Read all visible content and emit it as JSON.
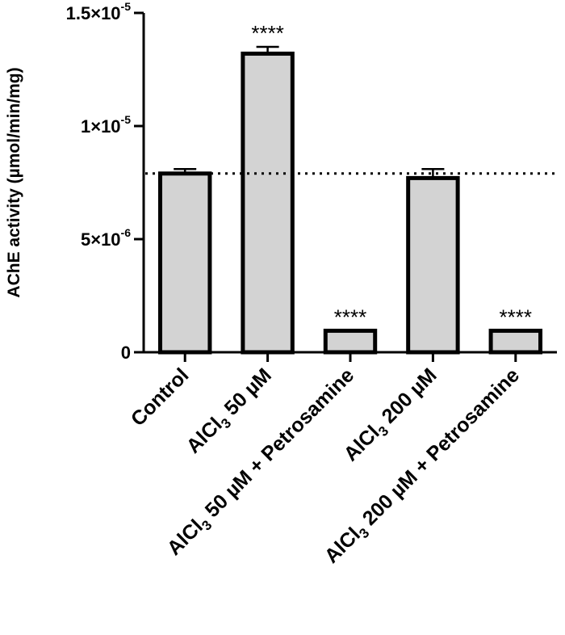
{
  "chart_data": {
    "type": "bar",
    "ylabel": "AChE activity (µmol/min/mg)",
    "ylim": [
      0,
      1.5e-05
    ],
    "yticks": [
      {
        "value": 0,
        "mantissa": "0",
        "exponent": ""
      },
      {
        "value": 5e-06,
        "mantissa": "5×10",
        "exponent": "-6"
      },
      {
        "value": 1e-05,
        "mantissa": "1×10",
        "exponent": "-5"
      },
      {
        "value": 1.5e-05,
        "mantissa": "1.5×10",
        "exponent": "-5"
      }
    ],
    "categories": [
      {
        "label_pre": "Control",
        "label_sub": "",
        "label_post": ""
      },
      {
        "label_pre": "AlCl",
        "label_sub": "3",
        "label_post": " 50 µM"
      },
      {
        "label_pre": "AlCl",
        "label_sub": "3",
        "label_post": " 50 µM + Petrosamine"
      },
      {
        "label_pre": "AlCl",
        "label_sub": "3",
        "label_post": " 200 µM"
      },
      {
        "label_pre": "AlCl",
        "label_sub": "3",
        "label_post": " 200 µM + Petrosamine"
      }
    ],
    "values": [
      7.9e-06,
      1.32e-05,
      9.5e-07,
      7.7e-06,
      9.5e-07
    ],
    "errors": [
      2e-07,
      3e-07,
      0.0,
      4e-07,
      0.0
    ],
    "significance": [
      "",
      "****",
      "****",
      "",
      "****"
    ],
    "reference_line": 7.9e-06,
    "bar_color": "#d3d3d3",
    "edge_color": "#000000",
    "grid": false
  }
}
